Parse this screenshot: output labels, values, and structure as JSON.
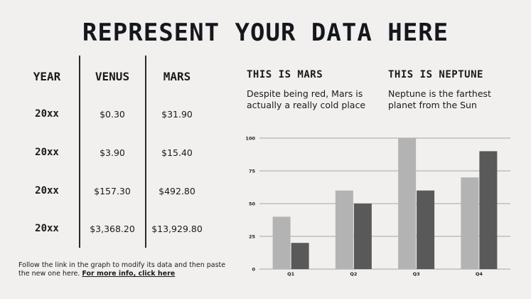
{
  "title": "REPRESENT YOUR DATA HERE",
  "table": {
    "headers": [
      "YEAR",
      "VENUS",
      "MARS"
    ],
    "rows": [
      {
        "year": "20xx",
        "venus": "$0.30",
        "mars": "$31.90"
      },
      {
        "year": "20xx",
        "venus": "$3.90",
        "mars": "$15.40"
      },
      {
        "year": "20xx",
        "venus": "$157.30",
        "mars": "$492.80"
      },
      {
        "year": "20xx",
        "venus": "$3,368.20",
        "mars": "$13,929.80"
      }
    ]
  },
  "footnote": {
    "text": "Follow the link in the graph to modify its data and then paste the new one here. ",
    "link": "For more info, click here"
  },
  "info": [
    {
      "title": "THIS IS MARS",
      "text": "Despite being red, Mars is actually a really cold place"
    },
    {
      "title": "THIS IS NEPTUNE",
      "text": "Neptune is the farthest planet from the Sun"
    }
  ],
  "colors": {
    "series_a": "#b3b3b3",
    "series_b": "#595959",
    "background": "#f1f0ee"
  },
  "chart_data": {
    "type": "bar",
    "categories": [
      "Q1",
      "Q2",
      "Q3",
      "Q4"
    ],
    "series": [
      {
        "values": [
          40,
          60,
          100,
          70
        ]
      },
      {
        "values": [
          20,
          50,
          60,
          90
        ]
      }
    ],
    "ylim": [
      0,
      100
    ],
    "yticks": [
      0,
      25,
      50,
      75,
      100
    ],
    "grid": true
  }
}
